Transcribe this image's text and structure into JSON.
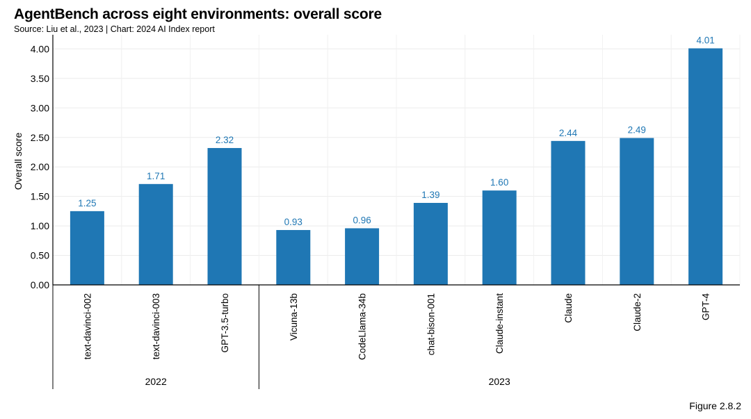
{
  "header": {
    "title": "AgentBench across eight environments: overall score",
    "subtitle": "Source: Liu et al., 2023 | Chart: 2024 AI Index report"
  },
  "footer": {
    "figure": "Figure 2.8.2"
  },
  "chart_data": {
    "type": "bar",
    "title": "AgentBench across eight environments: overall score",
    "xlabel": "",
    "ylabel": "Overall score",
    "ylim": [
      0,
      4.2
    ],
    "yticks": [
      "0.00",
      "0.50",
      "1.00",
      "1.50",
      "2.00",
      "2.50",
      "3.00",
      "3.50",
      "4.00"
    ],
    "grid": true,
    "bar_color": "#1f77b4",
    "categories": [
      "text-davinci-002",
      "text-davinci-003",
      "GPT-3.5-turbo",
      "Vicuna-13b",
      "CodeLlama-34b",
      "chat-bison-001",
      "Claude-instant",
      "Claude",
      "Claude-2",
      "GPT-4"
    ],
    "values": [
      1.25,
      1.71,
      2.32,
      0.93,
      0.96,
      1.39,
      1.6,
      2.44,
      2.49,
      4.01
    ],
    "value_labels": [
      "1.25",
      "1.71",
      "2.32",
      "0.93",
      "0.96",
      "1.39",
      "1.60",
      "2.44",
      "2.49",
      "4.01"
    ],
    "groups": [
      {
        "label": "2022",
        "count": 3
      },
      {
        "label": "2023",
        "count": 7
      }
    ]
  }
}
